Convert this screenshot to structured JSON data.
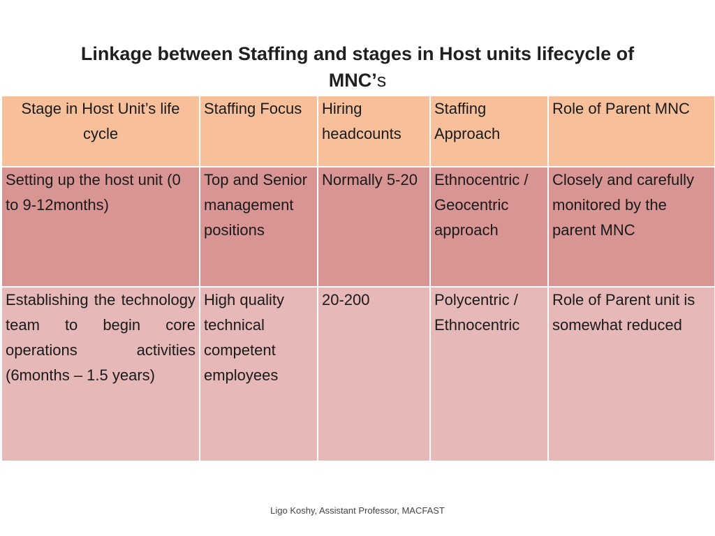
{
  "title": {
    "main": "Linkage between Staffing and stages in Host units lifecycle of",
    "line2_bold": "MNC’",
    "line2_suffix": "s"
  },
  "table": {
    "headers": [
      "Stage in Host Unit’s life cycle",
      "Staffing Focus",
      "Hiring headcounts",
      "Staffing Approach",
      "Role of Parent MNC"
    ],
    "rows": [
      [
        "Setting up the host unit (0 to 9-12months)",
        "Top and Senior management positions",
        "Normally 5-20",
        "Ethnocentric / Geocentric approach",
        "Closely and carefully monitored by the parent MNC"
      ],
      [
        "Establishing the technology team to begin core operations activities (6months – 1.5 years)",
        "High quality technical competent employees",
        "20-200",
        "Polycentric / Ethnocentric",
        "Role of Parent unit is somewhat reduced"
      ]
    ]
  },
  "colors": {
    "header_bg": "#f8c09a",
    "row1_bg": "#d99594",
    "row2_bg": "#e6b9b8"
  },
  "footer": "Ligo Koshy, Assistant Professor, MACFAST"
}
